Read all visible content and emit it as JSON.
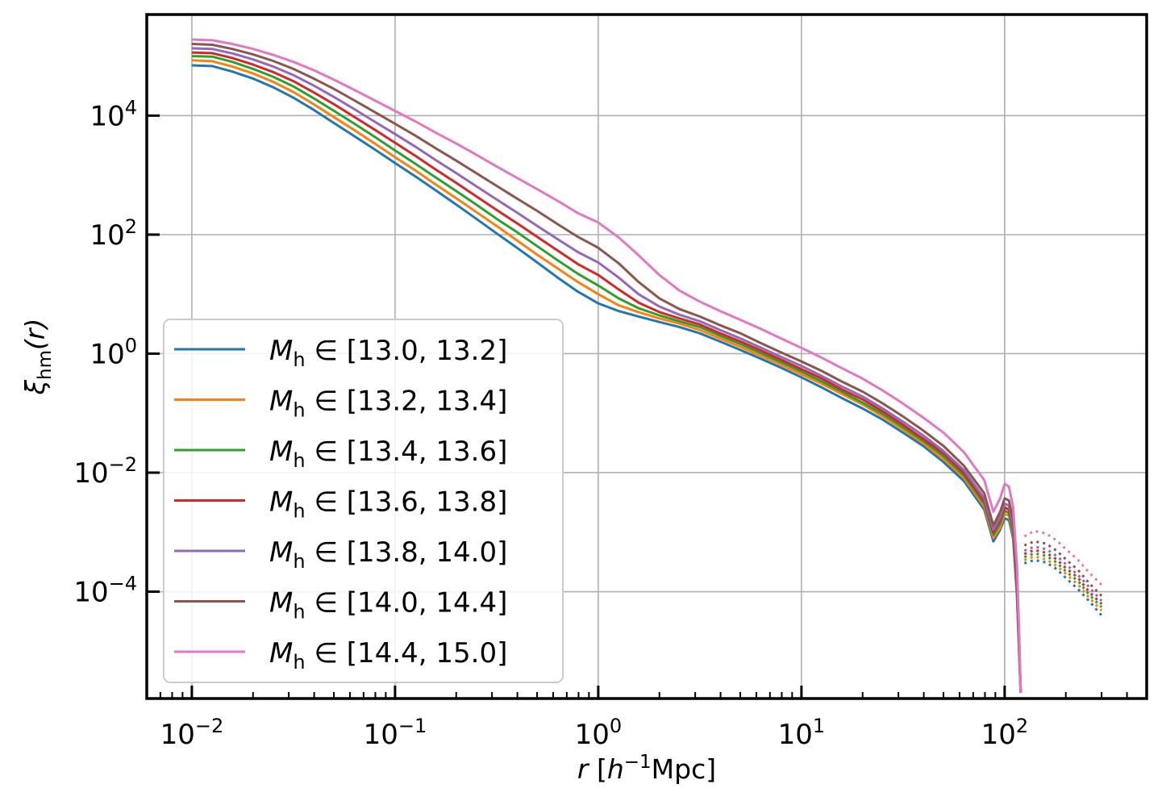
{
  "chart_data": {
    "type": "line",
    "title": "",
    "xlabel": {
      "var": "r",
      "unit_pre": " [",
      "unit_base": "h",
      "unit_exp": "−1",
      "unit_post": "Mpc]"
    },
    "ylabel": {
      "var": "ξ",
      "sub": "hm",
      "args": "(r)"
    },
    "x_scale": "log",
    "y_scale": "log",
    "xlim": [
      0.006,
      500
    ],
    "ylim": [
      1.6e-06,
      500000
    ],
    "x_ticks": [
      {
        "value": 0.01,
        "base": "10",
        "exp": "−2"
      },
      {
        "value": 0.1,
        "base": "10",
        "exp": "−1"
      },
      {
        "value": 1,
        "base": "10",
        "exp": "0"
      },
      {
        "value": 10,
        "base": "10",
        "exp": "1"
      },
      {
        "value": 100,
        "base": "10",
        "exp": "2"
      }
    ],
    "y_ticks": [
      {
        "value": 0.0001,
        "base": "10",
        "exp": "−4"
      },
      {
        "value": 0.01,
        "base": "10",
        "exp": "−2"
      },
      {
        "value": 1,
        "base": "10",
        "exp": "0"
      },
      {
        "value": 100,
        "base": "10",
        "exp": "2"
      },
      {
        "value": 10000,
        "base": "10",
        "exp": "4"
      }
    ],
    "grid": true,
    "legend_position": "lower-left",
    "legend_entries": [
      {
        "prefix": "M",
        "sub": "h",
        "range": "[13.0, 13.2]"
      },
      {
        "prefix": "M",
        "sub": "h",
        "range": "[13.2, 13.4]"
      },
      {
        "prefix": "M",
        "sub": "h",
        "range": "[13.4, 13.6]"
      },
      {
        "prefix": "M",
        "sub": "h",
        "range": "[13.6, 13.8]"
      },
      {
        "prefix": "M",
        "sub": "h",
        "range": "[13.8, 14.0]"
      },
      {
        "prefix": "M",
        "sub": "h",
        "range": "[14.0, 14.4]"
      },
      {
        "prefix": "M",
        "sub": "h",
        "range": "[14.4, 15.0]"
      }
    ],
    "legend_symbol": "∈",
    "positive_segment_note": "solid lines for positive values up to r≈120; dotted lines show |ξ| where negative",
    "x": [
      0.01,
      0.0126,
      0.0158,
      0.02,
      0.0251,
      0.0316,
      0.0398,
      0.0501,
      0.0631,
      0.0794,
      0.1,
      0.126,
      0.158,
      0.2,
      0.251,
      0.316,
      0.398,
      0.501,
      0.631,
      0.794,
      1.0,
      1.26,
      1.58,
      2.0,
      2.51,
      3.16,
      3.98,
      5.01,
      6.31,
      7.94,
      10.0,
      12.6,
      15.8,
      20.0,
      25.1,
      31.6,
      39.8,
      50.1,
      63.1,
      79.4,
      88,
      95,
      100,
      105,
      110,
      115,
      118,
      120
    ],
    "series": [
      {
        "color": "#1f77b4",
        "values": [
          70000,
          68000,
          55000,
          42000,
          30000,
          20000,
          12500,
          7500,
          4500,
          2700,
          1600,
          950,
          560,
          320,
          185,
          105,
          60,
          34,
          19,
          11,
          7.0,
          5.2,
          4.2,
          3.4,
          2.8,
          2.2,
          1.6,
          1.15,
          0.82,
          0.58,
          0.4,
          0.27,
          0.18,
          0.12,
          0.078,
          0.047,
          0.028,
          0.015,
          0.0072,
          0.0024,
          0.0007,
          0.0011,
          0.0017,
          0.0016,
          0.0008,
          8e-05,
          8e-06,
          2e-06
        ],
        "neg_x": [
          125,
          140,
          160,
          180,
          200,
          230,
          260,
          300
        ],
        "neg_values": [
          0.0003,
          0.00034,
          0.00031,
          0.00024,
          0.00017,
          0.00011,
          7e-05,
          4e-05
        ]
      },
      {
        "color": "#ff7f0e",
        "values": [
          85000,
          82000,
          67000,
          51000,
          37000,
          25000,
          15500,
          9400,
          5700,
          3400,
          2000,
          1200,
          700,
          410,
          240,
          140,
          80,
          46,
          27,
          16,
          10,
          6.5,
          5.0,
          3.9,
          3.2,
          2.5,
          1.8,
          1.3,
          0.92,
          0.65,
          0.45,
          0.31,
          0.21,
          0.14,
          0.088,
          0.053,
          0.031,
          0.017,
          0.0081,
          0.0027,
          0.0008,
          0.0012,
          0.002,
          0.0019,
          0.0009,
          9e-05,
          8e-06,
          2e-06
        ],
        "neg_x": [
          125,
          140,
          160,
          180,
          200,
          230,
          260,
          300
        ],
        "neg_values": [
          0.00034,
          0.00039,
          0.00035,
          0.00027,
          0.0002,
          0.00013,
          8e-05,
          4.8e-05
        ]
      },
      {
        "color": "#2ca02c",
        "values": [
          100000,
          98000,
          80000,
          61000,
          45000,
          31000,
          19500,
          12000,
          7300,
          4400,
          2600,
          1550,
          920,
          540,
          320,
          185,
          110,
          64,
          37,
          22,
          14,
          8.5,
          5.8,
          4.4,
          3.5,
          2.8,
          2.0,
          1.45,
          1.02,
          0.72,
          0.5,
          0.34,
          0.23,
          0.15,
          0.097,
          0.058,
          0.034,
          0.019,
          0.0089,
          0.003,
          0.0009,
          0.0014,
          0.0023,
          0.0021,
          0.001,
          0.0001,
          9e-06,
          2e-06
        ],
        "neg_x": [
          125,
          140,
          160,
          180,
          200,
          230,
          260,
          300
        ],
        "neg_values": [
          0.00038,
          0.00044,
          0.0004,
          0.00031,
          0.00022,
          0.00015,
          9e-05,
          5.5e-05
        ]
      },
      {
        "color": "#d62728",
        "values": [
          115000,
          112000,
          93000,
          72000,
          54000,
          38000,
          24500,
          15500,
          9500,
          5800,
          3500,
          2100,
          1250,
          740,
          440,
          260,
          155,
          92,
          54,
          32,
          21,
          12,
          7.2,
          5.0,
          3.9,
          3.1,
          2.2,
          1.6,
          1.13,
          0.79,
          0.55,
          0.38,
          0.25,
          0.17,
          0.107,
          0.064,
          0.037,
          0.021,
          0.0098,
          0.0033,
          0.001,
          0.0016,
          0.0026,
          0.0024,
          0.0012,
          0.00011,
          1e-05,
          2e-06
        ],
        "neg_x": [
          125,
          140,
          160,
          180,
          200,
          230,
          260,
          300
        ],
        "neg_values": [
          0.00043,
          0.0005,
          0.00045,
          0.00035,
          0.00025,
          0.00017,
          0.0001,
          6.2e-05
        ]
      },
      {
        "color": "#9467bd",
        "values": [
          135000,
          132000,
          111000,
          88000,
          67000,
          48000,
          32000,
          20500,
          12800,
          7900,
          4900,
          3000,
          1800,
          1080,
          650,
          390,
          235,
          140,
          84,
          51,
          34,
          19,
          10,
          6.2,
          4.5,
          3.5,
          2.5,
          1.8,
          1.26,
          0.88,
          0.62,
          0.42,
          0.28,
          0.19,
          0.12,
          0.072,
          0.042,
          0.023,
          0.011,
          0.0037,
          0.0011,
          0.0018,
          0.003,
          0.0028,
          0.0013,
          0.00013,
          1.1e-05,
          2e-06
        ],
        "neg_x": [
          125,
          140,
          160,
          180,
          200,
          230,
          260,
          300
        ],
        "neg_values": [
          0.00049,
          0.00057,
          0.00052,
          0.0004,
          0.00029,
          0.00019,
          0.00012,
          7e-05
        ]
      },
      {
        "color": "#8c564b",
        "values": [
          160000,
          155000,
          132000,
          107000,
          83000,
          61000,
          42000,
          28000,
          18000,
          11500,
          7300,
          4600,
          2850,
          1750,
          1080,
          660,
          405,
          250,
          150,
          92,
          60,
          33,
          16,
          8.5,
          5.6,
          4.2,
          3.0,
          2.2,
          1.5,
          1.05,
          0.74,
          0.51,
          0.34,
          0.23,
          0.146,
          0.088,
          0.051,
          0.028,
          0.013,
          0.0045,
          0.0013,
          0.0022,
          0.0037,
          0.0034,
          0.0016,
          0.00016,
          1.3e-05,
          2e-06
        ],
        "neg_x": [
          125,
          140,
          160,
          180,
          200,
          230,
          260,
          300
        ],
        "neg_values": [
          0.0006,
          0.0007,
          0.00064,
          0.00049,
          0.00035,
          0.00023,
          0.00014,
          8.5e-05
        ]
      },
      {
        "color": "#e377c2",
        "values": [
          190000,
          185000,
          160000,
          132000,
          105000,
          80000,
          58000,
          40000,
          27000,
          18000,
          12000,
          8000,
          5200,
          3400,
          2200,
          1400,
          900,
          580,
          370,
          230,
          160,
          90,
          45,
          21,
          11.5,
          7.5,
          5.2,
          3.7,
          2.6,
          1.8,
          1.25,
          0.85,
          0.57,
          0.38,
          0.24,
          0.145,
          0.084,
          0.047,
          0.022,
          0.0075,
          0.0022,
          0.0037,
          0.0065,
          0.0058,
          0.0027,
          0.00027,
          1.8e-05,
          2e-06
        ],
        "neg_x": [
          125,
          140,
          160,
          180,
          200,
          230,
          260,
          300
        ],
        "neg_values": [
          0.00085,
          0.00105,
          0.00095,
          0.00073,
          0.00052,
          0.00034,
          0.00021,
          0.00013
        ]
      }
    ]
  }
}
